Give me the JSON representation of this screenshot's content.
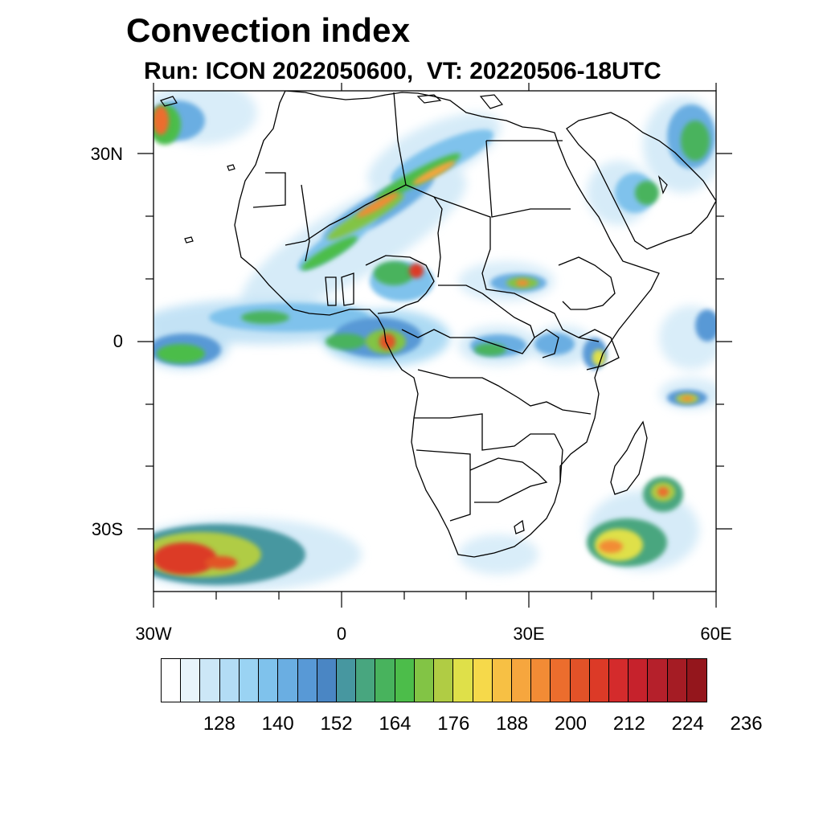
{
  "title": "Convection index",
  "subtitle": {
    "run_label": "Run:",
    "run": "ICON 2022050600,",
    "vt_label": "VT:",
    "vt": "20220506-18UTC"
  },
  "axes": {
    "y_labels": [
      "30N",
      "0",
      "30S"
    ],
    "x_labels": [
      "30W",
      "0",
      "30E",
      "60E"
    ]
  },
  "colorbar": {
    "labels": [
      "128",
      "140",
      "152",
      "164",
      "176",
      "188",
      "200",
      "212",
      "224",
      "236"
    ],
    "colors": [
      "#ffffff",
      "#e8f4fb",
      "#cce7f7",
      "#b3dcf5",
      "#9ad3f3",
      "#7fc2ec",
      "#6aaee2",
      "#5899d6",
      "#4a86c4",
      "#4797a0",
      "#48a67f",
      "#48b35d",
      "#4cbd4a",
      "#82c445",
      "#b0cc44",
      "#dfe049",
      "#f6d94a",
      "#f7c044",
      "#f6a63e",
      "#f28b35",
      "#ec6d2d",
      "#e25228",
      "#dc3a27",
      "#d42b2c",
      "#c6222c",
      "#b5202b",
      "#a51c24",
      "#94161c"
    ]
  },
  "map": {
    "region": "Africa and surrounding oceans",
    "lat_range": [
      -40,
      40
    ],
    "lon_range": [
      -30,
      60
    ]
  }
}
